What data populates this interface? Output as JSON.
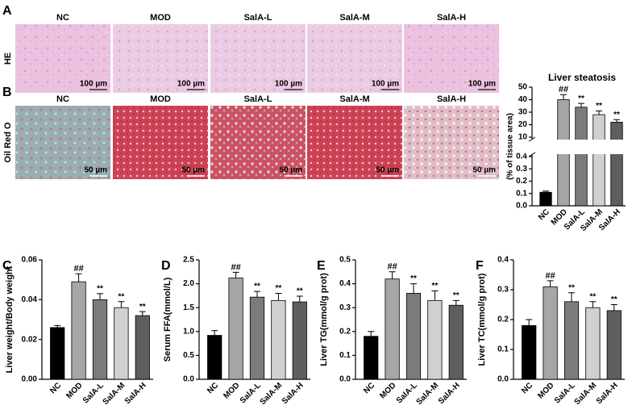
{
  "figure": {
    "groups": [
      "NC",
      "MOD",
      "SalA-L",
      "SalA-M",
      "SalA-H"
    ],
    "rows": [
      {
        "panel": "A",
        "label": "HE",
        "scale_bar": "100 µm"
      },
      {
        "panel": "B",
        "label": "Oil Red O",
        "scale_bar": "50 µm"
      }
    ]
  },
  "chart_data": [
    {
      "type": "bar",
      "title": "Liver steatosis",
      "ylabel": "(% of tissue area)",
      "categories": [
        "NC",
        "MOD",
        "SalA-L",
        "SalA-M",
        "SalA-H"
      ],
      "values": [
        0.11,
        40,
        34,
        28,
        22
      ],
      "errors": [
        0.01,
        4,
        3,
        3,
        2
      ],
      "annotations": [
        null,
        "##",
        "**",
        "**",
        "**"
      ],
      "colors": [
        "#000000",
        "#a6a6a6",
        "#7b7b7b",
        "#d0d0d0",
        "#5e5e5e"
      ],
      "ylim": [
        0,
        50
      ],
      "ybreak": [
        0.4,
        10
      ],
      "yticks": [
        {
          "value": 0,
          "label": "0.0"
        },
        0.1,
        0.2,
        0.3,
        0.4,
        10,
        20,
        30,
        40,
        50
      ]
    },
    {
      "type": "bar",
      "panel": "C",
      "ylabel": "Liver weight/Body weight",
      "categories": [
        "NC",
        "MOD",
        "SalA-L",
        "SalA-M",
        "SalA-H"
      ],
      "values": [
        0.026,
        0.049,
        0.04,
        0.036,
        0.032
      ],
      "errors": [
        0.001,
        0.004,
        0.003,
        0.003,
        0.002
      ],
      "annotations": [
        null,
        "##",
        "**",
        "**",
        "**"
      ],
      "colors": [
        "#000000",
        "#a6a6a6",
        "#7b7b7b",
        "#d0d0d0",
        "#5e5e5e"
      ],
      "ylim": [
        0,
        0.06
      ],
      "yticks": [
        {
          "value": 0,
          "label": "0.00"
        },
        0.02,
        0.04,
        0.06
      ]
    },
    {
      "type": "bar",
      "panel": "D",
      "ylabel": "Serum FFA(mmol/L)",
      "categories": [
        "NC",
        "MOD",
        "SalA-L",
        "SalA-M",
        "SalA-H"
      ],
      "values": [
        0.92,
        2.12,
        1.72,
        1.65,
        1.62
      ],
      "errors": [
        0.1,
        0.12,
        0.12,
        0.15,
        0.12
      ],
      "annotations": [
        null,
        "##",
        "**",
        "**",
        "**"
      ],
      "colors": [
        "#000000",
        "#a6a6a6",
        "#7b7b7b",
        "#d0d0d0",
        "#5e5e5e"
      ],
      "ylim": [
        0,
        2.5
      ],
      "yticks": [
        {
          "value": 0,
          "label": "0.0"
        },
        0.5,
        {
          "value": 1,
          "label": "1.0"
        },
        1.5,
        {
          "value": 2,
          "label": "2.0"
        },
        2.5
      ]
    },
    {
      "type": "bar",
      "panel": "E",
      "ylabel": "Liver TG(mmol/g prot)",
      "categories": [
        "NC",
        "MOD",
        "SalA-L",
        "SalA-M",
        "SalA-H"
      ],
      "values": [
        0.18,
        0.42,
        0.36,
        0.33,
        0.31
      ],
      "errors": [
        0.02,
        0.03,
        0.04,
        0.04,
        0.02
      ],
      "annotations": [
        null,
        "##",
        "**",
        "**",
        "**"
      ],
      "colors": [
        "#000000",
        "#a6a6a6",
        "#7b7b7b",
        "#d0d0d0",
        "#5e5e5e"
      ],
      "ylim": [
        0,
        0.5
      ],
      "yticks": [
        {
          "value": 0,
          "label": "0.0"
        },
        0.1,
        0.2,
        0.3,
        0.4,
        0.5
      ]
    },
    {
      "type": "bar",
      "panel": "F",
      "ylabel": "Liver TC(mmol/g prot)",
      "categories": [
        "NC",
        "MOD",
        "SalA-L",
        "SalA-M",
        "SalA-H"
      ],
      "values": [
        0.18,
        0.31,
        0.26,
        0.24,
        0.23
      ],
      "errors": [
        0.02,
        0.02,
        0.03,
        0.02,
        0.02
      ],
      "annotations": [
        null,
        "##",
        "**",
        "**",
        "**"
      ],
      "colors": [
        "#000000",
        "#a6a6a6",
        "#7b7b7b",
        "#d0d0d0",
        "#5e5e5e"
      ],
      "ylim": [
        0,
        0.4
      ],
      "yticks": [
        {
          "value": 0,
          "label": "0.0"
        },
        0.1,
        0.2,
        0.3,
        0.4
      ]
    }
  ]
}
